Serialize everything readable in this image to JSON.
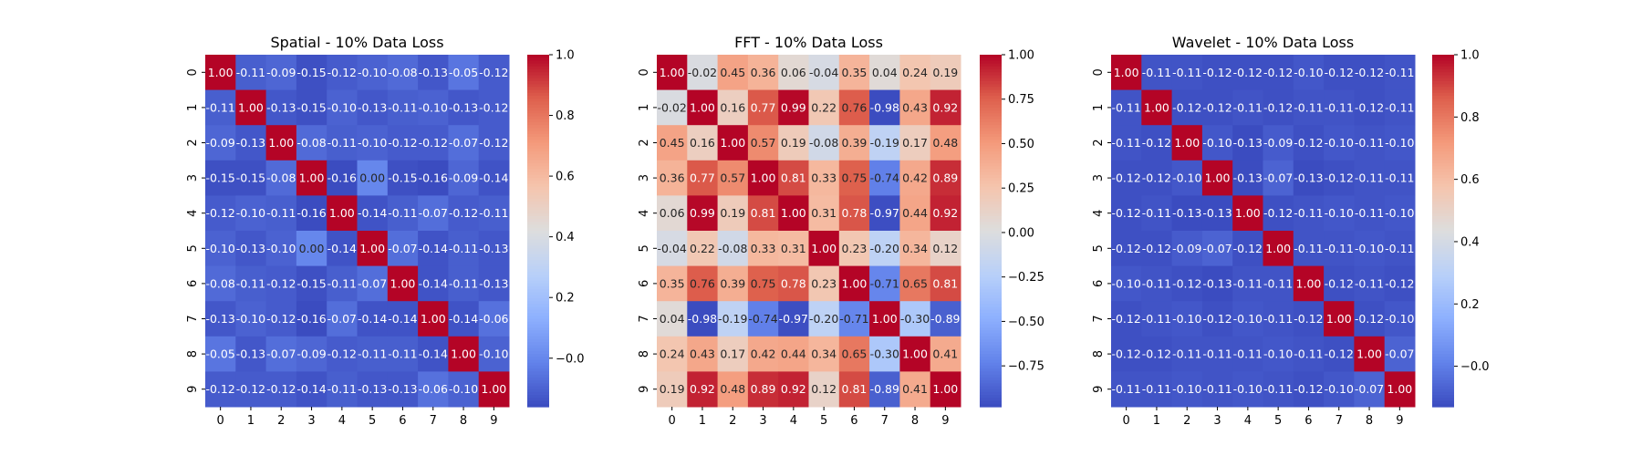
{
  "chart_data": [
    {
      "type": "heatmap",
      "title": "Spatial - 10% Data Loss",
      "colormap": "coolwarm",
      "x_categories": [
        "0",
        "1",
        "2",
        "3",
        "4",
        "5",
        "6",
        "7",
        "8",
        "9"
      ],
      "y_categories": [
        "0",
        "1",
        "2",
        "3",
        "4",
        "5",
        "6",
        "7",
        "8",
        "9"
      ],
      "vmin": -0.16,
      "vmax": 1.0,
      "colorbar_ticks": [
        -0.0,
        0.2,
        0.4,
        0.6,
        0.8,
        1.0
      ],
      "colorbar_tick_labels": [
        "−0.0",
        "0.2",
        "0.4",
        "0.6",
        "0.8",
        "1.0"
      ],
      "values": [
        [
          1.0,
          -0.11,
          -0.09,
          -0.15,
          -0.12,
          -0.1,
          -0.08,
          -0.13,
          -0.05,
          -0.12
        ],
        [
          -0.11,
          1.0,
          -0.13,
          -0.15,
          -0.1,
          -0.13,
          -0.11,
          -0.1,
          -0.13,
          -0.12
        ],
        [
          -0.09,
          -0.13,
          1.0,
          -0.08,
          -0.11,
          -0.1,
          -0.12,
          -0.12,
          -0.07,
          -0.12
        ],
        [
          -0.15,
          -0.15,
          -0.08,
          1.0,
          -0.16,
          0.0,
          -0.15,
          -0.16,
          -0.09,
          -0.14
        ],
        [
          -0.12,
          -0.1,
          -0.11,
          -0.16,
          1.0,
          -0.14,
          -0.11,
          -0.07,
          -0.12,
          -0.11
        ],
        [
          -0.1,
          -0.13,
          -0.1,
          0.0,
          -0.14,
          1.0,
          -0.07,
          -0.14,
          -0.11,
          -0.13
        ],
        [
          -0.08,
          -0.11,
          -0.12,
          -0.15,
          -0.11,
          -0.07,
          1.0,
          -0.14,
          -0.11,
          -0.13
        ],
        [
          -0.13,
          -0.1,
          -0.12,
          -0.16,
          -0.07,
          -0.14,
          -0.14,
          1.0,
          -0.14,
          -0.06
        ],
        [
          -0.05,
          -0.13,
          -0.07,
          -0.09,
          -0.12,
          -0.11,
          -0.11,
          -0.14,
          1.0,
          -0.1
        ],
        [
          -0.12,
          -0.12,
          -0.12,
          -0.14,
          -0.11,
          -0.13,
          -0.13,
          -0.06,
          -0.1,
          1.0
        ]
      ]
    },
    {
      "type": "heatmap",
      "title": "FFT - 10% Data Loss",
      "colormap": "coolwarm",
      "x_categories": [
        "0",
        "1",
        "2",
        "3",
        "4",
        "5",
        "6",
        "7",
        "8",
        "9"
      ],
      "y_categories": [
        "0",
        "1",
        "2",
        "3",
        "4",
        "5",
        "6",
        "7",
        "8",
        "9"
      ],
      "vmin": -0.98,
      "vmax": 1.0,
      "colorbar_ticks": [
        -0.75,
        -0.5,
        -0.25,
        0.0,
        0.25,
        0.5,
        0.75,
        1.0
      ],
      "colorbar_tick_labels": [
        "−0.75",
        "−0.50",
        "−0.25",
        "0.00",
        "0.25",
        "0.50",
        "0.75",
        "1.00"
      ],
      "values": [
        [
          1.0,
          -0.02,
          0.45,
          0.36,
          0.06,
          -0.04,
          0.35,
          0.04,
          0.24,
          0.19
        ],
        [
          -0.02,
          1.0,
          0.16,
          0.77,
          0.99,
          0.22,
          0.76,
          -0.98,
          0.43,
          0.92
        ],
        [
          0.45,
          0.16,
          1.0,
          0.57,
          0.19,
          -0.08,
          0.39,
          -0.19,
          0.17,
          0.48
        ],
        [
          0.36,
          0.77,
          0.57,
          1.0,
          0.81,
          0.33,
          0.75,
          -0.74,
          0.42,
          0.89
        ],
        [
          0.06,
          0.99,
          0.19,
          0.81,
          1.0,
          0.31,
          0.78,
          -0.97,
          0.44,
          0.92
        ],
        [
          -0.04,
          0.22,
          -0.08,
          0.33,
          0.31,
          1.0,
          0.23,
          -0.2,
          0.34,
          0.12
        ],
        [
          0.35,
          0.76,
          0.39,
          0.75,
          0.78,
          0.23,
          1.0,
          -0.71,
          0.65,
          0.81
        ],
        [
          0.04,
          -0.98,
          -0.19,
          -0.74,
          -0.97,
          -0.2,
          -0.71,
          1.0,
          -0.3,
          -0.89
        ],
        [
          0.24,
          0.43,
          0.17,
          0.42,
          0.44,
          0.34,
          0.65,
          -0.3,
          1.0,
          0.41
        ],
        [
          0.19,
          0.92,
          0.48,
          0.89,
          0.92,
          0.12,
          0.81,
          -0.89,
          0.41,
          1.0
        ]
      ]
    },
    {
      "type": "heatmap",
      "title": "Wavelet - 10% Data Loss",
      "colormap": "coolwarm",
      "x_categories": [
        "0",
        "1",
        "2",
        "3",
        "4",
        "5",
        "6",
        "7",
        "8",
        "9"
      ],
      "y_categories": [
        "0",
        "1",
        "2",
        "3",
        "4",
        "5",
        "6",
        "7",
        "8",
        "9"
      ],
      "vmin": -0.13,
      "vmax": 1.0,
      "colorbar_ticks": [
        -0.0,
        0.2,
        0.4,
        0.6,
        0.8,
        1.0
      ],
      "colorbar_tick_labels": [
        "−0.0",
        "0.2",
        "0.4",
        "0.6",
        "0.8",
        "1.0"
      ],
      "values": [
        [
          1.0,
          -0.11,
          -0.11,
          -0.12,
          -0.12,
          -0.12,
          -0.1,
          -0.12,
          -0.12,
          -0.11
        ],
        [
          -0.11,
          1.0,
          -0.12,
          -0.12,
          -0.11,
          -0.12,
          -0.11,
          -0.11,
          -0.12,
          -0.11
        ],
        [
          -0.11,
          -0.12,
          1.0,
          -0.1,
          -0.13,
          -0.09,
          -0.12,
          -0.1,
          -0.11,
          -0.1
        ],
        [
          -0.12,
          -0.12,
          -0.1,
          1.0,
          -0.13,
          -0.07,
          -0.13,
          -0.12,
          -0.11,
          -0.11
        ],
        [
          -0.12,
          -0.11,
          -0.13,
          -0.13,
          1.0,
          -0.12,
          -0.11,
          -0.1,
          -0.11,
          -0.1
        ],
        [
          -0.12,
          -0.12,
          -0.09,
          -0.07,
          -0.12,
          1.0,
          -0.11,
          -0.11,
          -0.1,
          -0.11
        ],
        [
          -0.1,
          -0.11,
          -0.12,
          -0.13,
          -0.11,
          -0.11,
          1.0,
          -0.12,
          -0.11,
          -0.12
        ],
        [
          -0.12,
          -0.11,
          -0.1,
          -0.12,
          -0.1,
          -0.11,
          -0.12,
          1.0,
          -0.12,
          -0.1
        ],
        [
          -0.12,
          -0.12,
          -0.11,
          -0.11,
          -0.11,
          -0.1,
          -0.11,
          -0.12,
          1.0,
          -0.07
        ],
        [
          -0.11,
          -0.11,
          -0.1,
          -0.11,
          -0.1,
          -0.11,
          -0.12,
          -0.1,
          -0.07,
          1.0
        ]
      ]
    }
  ]
}
